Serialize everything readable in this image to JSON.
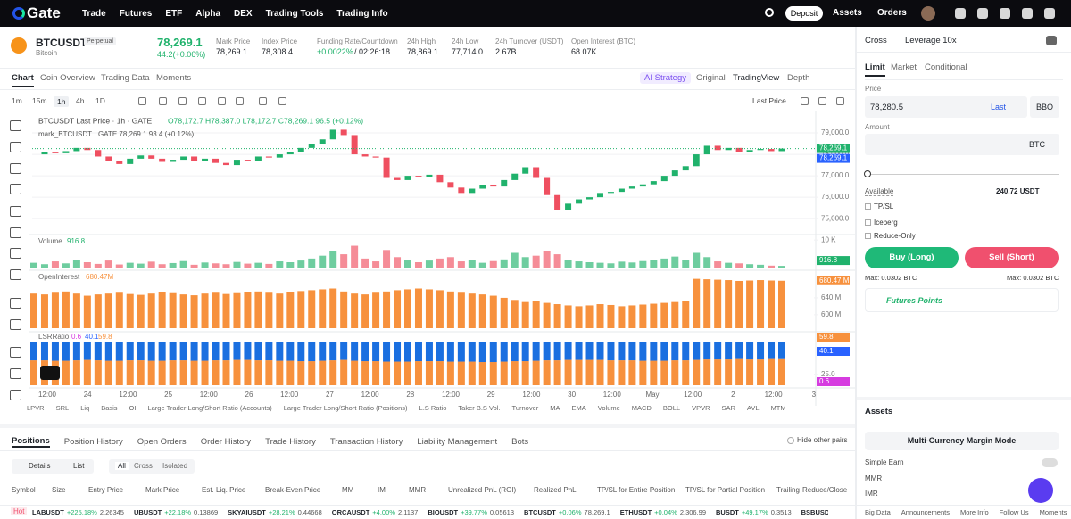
{
  "nav": {
    "logo": "Gate",
    "items": [
      "Trade",
      "Futures",
      "ETF",
      "Alpha",
      "DEX",
      "Trading Tools",
      "Trading Info"
    ],
    "deposit": "Deposit",
    "assets": "Assets",
    "orders": "Orders"
  },
  "ticker": {
    "symbol": "BTCUSDT",
    "tag": "Perpetual",
    "name": "Bitcoin",
    "price": "78,269.1",
    "change": "44.2(+0.06%)",
    "stats": [
      {
        "label": "Mark Price",
        "value": "78,269.1"
      },
      {
        "label": "Index Price",
        "value": "78,308.4"
      },
      {
        "label": "Funding Rate/Countdown",
        "value": "+0.0022%",
        "extra": "/ 02:26:18"
      },
      {
        "label": "24h High",
        "value": "78,869.1"
      },
      {
        "label": "24h Low",
        "value": "77,714.0"
      },
      {
        "label": "24h Turnover (USDT)",
        "value": "2.67B"
      },
      {
        "label": "Open Interest (BTC)",
        "value": "68.07K"
      }
    ]
  },
  "chart_tabs": [
    "Chart",
    "Coin Overview",
    "Trading Data",
    "Moments"
  ],
  "view_tabs": [
    "AI Strategy",
    "Original",
    "TradingView",
    "Depth"
  ],
  "intervals": [
    "1m",
    "15m",
    "1h",
    "4h",
    "1D"
  ],
  "price_mode": "Last Price",
  "chart_data": [
    {
      "type": "candlestick",
      "title": "BTCUSDT Last Price · 1h · GATE",
      "ohlc": "O78,172.7 H78,387.0 L78,172.7 C78,269.1 96.5 (+0.12%)",
      "subtitle": "mark_BTCUSDT · GATE 78,269.1 93.4 (+0.12%)",
      "up_color": "#20b26c",
      "down_color": "#ef4f60",
      "grid": true,
      "values": [
        78000,
        78100,
        78050,
        78150,
        78300,
        78200,
        77900,
        77700,
        77550,
        77800,
        77950,
        77800,
        77650,
        77750,
        77900,
        77700,
        77800,
        77600,
        77500,
        77750,
        77700,
        77900,
        77850,
        78000,
        78100,
        78300,
        78500,
        78700,
        79150,
        78900,
        78000,
        77900,
        77850,
        76900,
        76800,
        77000,
        76950,
        77050,
        76700,
        76450,
        76200,
        76400,
        76550,
        76500,
        76800,
        77100,
        77400,
        76900,
        76100,
        75400,
        75700,
        75900,
        76000,
        76200,
        76250,
        76400,
        76500,
        76600,
        76750,
        77000,
        77250,
        77450,
        78000,
        78400,
        78200,
        78300,
        78100,
        78200,
        78250,
        78150,
        78269.1
      ],
      "ylim": [
        74300,
        79875
      ],
      "yticks": [
        {
          "value": 75000,
          "label": "75,000.0"
        },
        {
          "value": 76000,
          "label": "76,000.0"
        },
        {
          "value": 77000,
          "label": "77,000.0"
        },
        {
          "value": 78000,
          "label": "78,000.0"
        },
        {
          "value": 79000,
          "label": "79,000.0"
        }
      ],
      "price_tags": [
        {
          "label": "78,269.1",
          "color": "#20b26c"
        },
        {
          "label": "78,269.1",
          "color": "#2962ff"
        }
      ],
      "x_tick_labels": [
        "12:00",
        "24",
        "12:00",
        "25",
        "12:00",
        "26",
        "12:00",
        "27",
        "12:00",
        "28",
        "12:00",
        "29",
        "12:00",
        "30",
        "12:00",
        "May",
        "12:00",
        "2",
        "12:00",
        "3"
      ]
    },
    {
      "type": "bar",
      "title": "Volume",
      "value_label": "916.8",
      "up_color": "#20b26c",
      "down_color": "#ef4f60",
      "values": [
        2000,
        1500,
        2500,
        1800,
        3000,
        2200,
        1600,
        2800,
        1400,
        2000,
        1700,
        2400,
        1500,
        1900,
        2600,
        1300,
        2100,
        1800,
        1500,
        2300,
        1700,
        2000,
        1600,
        2500,
        2200,
        2800,
        3500,
        4500,
        6000,
        5000,
        8000,
        3500,
        2500,
        6500,
        4000,
        3000,
        2200,
        2800,
        3500,
        4000,
        2500,
        3000,
        2000,
        2600,
        3200,
        5500,
        4000,
        4500,
        6000,
        5000,
        3000,
        2500,
        2200,
        2000,
        1800,
        2400,
        2100,
        2600,
        3000,
        3500,
        4200,
        3000,
        5500,
        4000,
        2500,
        2000,
        1800,
        1500,
        1300,
        1000,
        916.8
      ],
      "ylim": [
        0,
        11000
      ],
      "yticks": [
        {
          "value": 10000,
          "label": "10 K"
        }
      ]
    },
    {
      "type": "bar",
      "title": "OpenInterest",
      "value_label": "680.47M",
      "tag": "680.47 M",
      "color": "#f7913d",
      "values": [
        650,
        648,
        652,
        655,
        650,
        645,
        648,
        650,
        652,
        649,
        647,
        650,
        653,
        651,
        648,
        646,
        650,
        652,
        649,
        651,
        653,
        655,
        652,
        650,
        654,
        656,
        658,
        660,
        662,
        655,
        650,
        648,
        652,
        655,
        658,
        660,
        662,
        660,
        658,
        655,
        652,
        650,
        648,
        645,
        640,
        635,
        630,
        632,
        628,
        625,
        622,
        620,
        622,
        625,
        623,
        620,
        622,
        624,
        626,
        628,
        630,
        632,
        685,
        684,
        683,
        682,
        680,
        681,
        682,
        681,
        680.47
      ],
      "ylim": [
        568,
        699
      ],
      "yticks": [
        {
          "value": 640,
          "label": "640 M"
        },
        {
          "value": 600,
          "label": "600 M"
        }
      ]
    },
    {
      "type": "stacked_bar",
      "title": "LSRRatio",
      "legend_values": [
        {
          "label": "0.6",
          "color": "#d63ce0"
        },
        {
          "label": "40.1",
          "color": "#2962ff"
        },
        {
          "label": "59.8",
          "color": "#f7913d"
        }
      ],
      "tags": [
        {
          "label": "59.8",
          "color": "#f7913d"
        },
        {
          "label": "40.1",
          "color": "#2962ff"
        },
        {
          "label": "0.6",
          "color": "#d63ce0"
        }
      ],
      "series": [
        {
          "color": "#f7913d",
          "values": [
            57,
            57,
            56,
            56,
            57,
            58,
            57,
            56,
            56,
            57,
            57,
            56,
            56,
            57,
            57,
            56,
            56,
            57,
            57,
            58,
            58,
            57,
            57,
            56,
            56,
            55,
            55,
            56,
            57,
            58,
            56,
            55,
            55,
            54,
            54,
            54,
            55,
            55,
            55,
            54,
            54,
            54,
            53,
            53,
            54,
            55,
            55,
            56,
            57,
            57,
            58,
            58,
            58,
            58,
            57,
            57,
            57,
            56,
            56,
            56,
            57,
            57,
            58,
            59,
            59,
            59,
            60,
            59,
            59,
            60,
            59.8
          ]
        },
        {
          "color": "#1a6fe0",
          "values": [
            43,
            43,
            44,
            44,
            43,
            42,
            43,
            44,
            44,
            43,
            43,
            44,
            44,
            43,
            43,
            44,
            44,
            43,
            43,
            42,
            42,
            43,
            43,
            44,
            44,
            45,
            45,
            44,
            43,
            42,
            44,
            45,
            45,
            46,
            46,
            46,
            45,
            45,
            45,
            46,
            46,
            46,
            47,
            47,
            46,
            45,
            45,
            44,
            43,
            43,
            42,
            42,
            42,
            42,
            43,
            43,
            43,
            44,
            44,
            44,
            43,
            43,
            42,
            41,
            41,
            41,
            40,
            41,
            41,
            40,
            40.1
          ]
        }
      ],
      "ylim": [
        0,
        100
      ],
      "yticks": [
        {
          "value": 25,
          "label": "25.0"
        }
      ]
    }
  ],
  "indicators": [
    "LPVR",
    "SRL",
    "Liq",
    "Basis",
    "OI",
    "Large Trader Long/Short Ratio (Accounts)",
    "Large Trader Long/Short Ratio (Positions)",
    "L.S Ratio",
    "Taker B.S Vol.",
    "Turnover",
    "MA",
    "EMA",
    "Volume",
    "MACD",
    "BOLL",
    "VPVR",
    "SAR",
    "AVL",
    "MTM",
    "VR",
    "DMA",
    "SKDJ",
    "PS"
  ],
  "order_panel": {
    "margin": "Cross",
    "leverage": "Leverage 10x",
    "tabs": [
      "Limit",
      "Market",
      "Conditional"
    ],
    "price_label": "Price",
    "price_value": "78,280.5",
    "last": "Last",
    "bbo": "BBO",
    "amount_label": "Amount",
    "unit": "BTC",
    "available_label": "Available",
    "available": "240.72 USDT",
    "options": [
      "TP/SL",
      "Iceberg",
      "Reduce-Only"
    ],
    "buy": "Buy (Long)",
    "sell": "Sell (Short)",
    "max_buy": "Max: 0.0302 BTC",
    "max_sell": "Max: 0.0302 BTC",
    "points": "Futures Points"
  },
  "assets": {
    "title": "Assets",
    "mode": "Multi-Currency Margin Mode",
    "rows": [
      "Simple Earn",
      "MMR",
      "IMR"
    ]
  },
  "positions": {
    "tabs": [
      "Positions",
      "Position History",
      "Open Orders",
      "Order History",
      "Trade History",
      "Transaction History",
      "Liability Management",
      "Bots"
    ],
    "hide": "Hide other pairs",
    "views": [
      "Details",
      "List"
    ],
    "filters": [
      "All",
      "Cross",
      "Isolated"
    ],
    "columns": [
      "Symbol",
      "Size",
      "Entry Price",
      "Mark Price",
      "Est. Liq. Price",
      "Break-Even Price",
      "MM",
      "IM",
      "MMR",
      "Unrealized PnL (ROI)",
      "Realized PnL",
      "TP/SL for Entire Position",
      "TP/SL for Partial Position",
      "Trailing",
      "Reduce/Close"
    ]
  },
  "hot": {
    "label": "Hot",
    "tickers": [
      {
        "symbol": "LABUSDT",
        "change": "+225.18%",
        "price": "2.26345"
      },
      {
        "symbol": "UBUSDT",
        "change": "+22.18%",
        "price": "0.13869"
      },
      {
        "symbol": "SKYAIUSDT",
        "change": "+28.21%",
        "price": "0.44668"
      },
      {
        "symbol": "ORCAUSDT",
        "change": "+4.00%",
        "price": "2.1137"
      },
      {
        "symbol": "BIOUSDT",
        "change": "+39.77%",
        "price": "0.05613"
      },
      {
        "symbol": "BTCUSDT",
        "change": "+0.06%",
        "price": "78,269.1"
      },
      {
        "symbol": "ETHUSDT",
        "change": "+0.04%",
        "price": "2,306.99"
      },
      {
        "symbol": "BUSDT",
        "change": "+49.17%",
        "price": "0.3513"
      },
      {
        "symbol": "BSBUSDT",
        "change": "+14.8",
        "price": ""
      }
    ]
  },
  "footer": [
    "Big Data",
    "Announcements",
    "More Info",
    "Follow Us",
    "Moments"
  ]
}
